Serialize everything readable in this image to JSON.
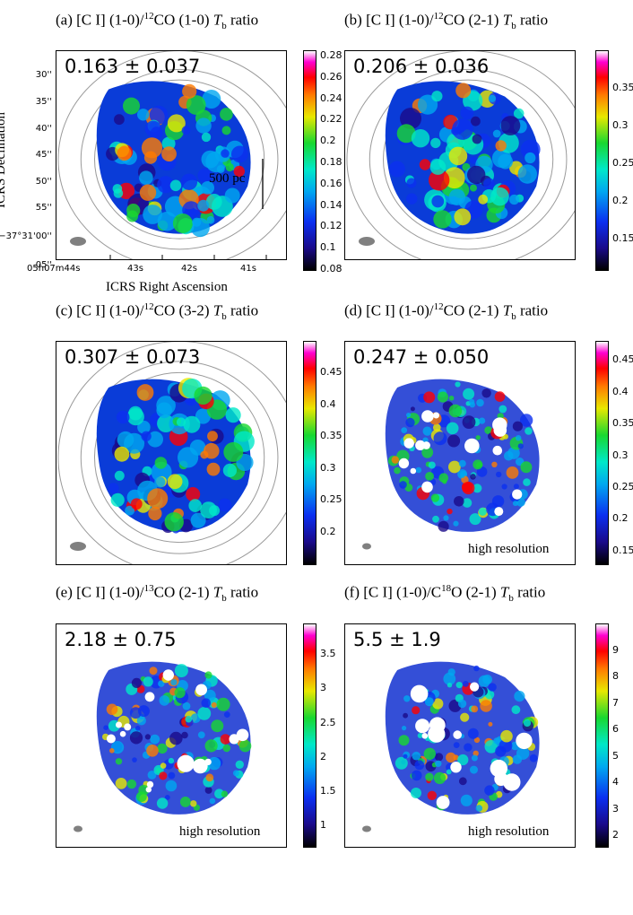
{
  "colors": {
    "frame": "#000000",
    "contour": "#9a9a9a",
    "beam": "#808080"
  },
  "axes": {
    "ylabel": "ICRS Declination",
    "xlabel": "ICRS Right Ascension",
    "dec_ticks": [
      "30''",
      "35''",
      "40''",
      "45''",
      "50''",
      "55''",
      "−37°31'00''",
      "05''"
    ],
    "ra_ticks": [
      "05h07m44s",
      "43s",
      "42s",
      "41s"
    ]
  },
  "scalebar": {
    "label": "500 pc"
  },
  "chart_data": [
    {
      "type": "heatmap",
      "panel": "(a)",
      "title_prefix": "(a) [C I] (1-0)/",
      "title_iso": "12",
      "title_mol": "CO (1-0) ",
      "title_T": "T",
      "title_sub": "b",
      "title_suffix": " ratio",
      "stat": "0.163 ± 0.037",
      "note": "",
      "colorbar_ticks": [
        "0.28",
        "0.26",
        "0.24",
        "0.22",
        "0.2",
        "0.18",
        "0.16",
        "0.14",
        "0.12",
        "0.1",
        "0.08"
      ],
      "cmin": 0.08,
      "cmax": 0.285
    },
    {
      "type": "heatmap",
      "panel": "(b)",
      "title_prefix": "(b) [C I] (1-0)/",
      "title_iso": "12",
      "title_mol": "CO (2-1) ",
      "title_T": "T",
      "title_sub": "b",
      "title_suffix": " ratio",
      "stat": "0.206 ± 0.036",
      "note": "",
      "colorbar_ticks": [
        "0.35",
        "0.3",
        "0.25",
        "0.2",
        "0.15"
      ],
      "cmin": 0.11,
      "cmax": 0.4
    },
    {
      "type": "heatmap",
      "panel": "(c)",
      "title_prefix": "(c) [C I] (1-0)/",
      "title_iso": "12",
      "title_mol": "CO (3-2) ",
      "title_T": "T",
      "title_sub": "b",
      "title_suffix": " ratio",
      "stat": "0.307 ± 0.073",
      "note": "",
      "colorbar_ticks": [
        "0.45",
        "0.4",
        "0.35",
        "0.3",
        "0.25",
        "0.2"
      ],
      "cmin": 0.15,
      "cmax": 0.5
    },
    {
      "type": "heatmap",
      "panel": "(d)",
      "title_prefix": "(d) [C I] (1-0)/",
      "title_iso": "12",
      "title_mol": "CO (2-1) ",
      "title_T": "T",
      "title_sub": "b",
      "title_suffix": " ratio",
      "stat": "0.247 ± 0.050",
      "note": "high resolution",
      "colorbar_ticks": [
        "0.45",
        "0.4",
        "0.35",
        "0.3",
        "0.25",
        "0.2",
        "0.15"
      ],
      "cmin": 0.13,
      "cmax": 0.48
    },
    {
      "type": "heatmap",
      "panel": "(e)",
      "title_prefix": "(e) [C I] (1-0)/",
      "title_iso": "13",
      "title_mol": "CO (2-1) ",
      "title_T": "T",
      "title_sub": "b",
      "title_suffix": " ratio",
      "stat": "2.18 ± 0.75",
      "note": "high resolution",
      "colorbar_ticks": [
        "3.5",
        "3",
        "2.5",
        "2",
        "1.5",
        "1"
      ],
      "cmin": 0.7,
      "cmax": 3.95
    },
    {
      "type": "heatmap",
      "panel": "(f)",
      "title_prefix": "(f) [C I] (1-0)/C",
      "title_iso": "18",
      "title_mol": "O (2-1) ",
      "title_T": "T",
      "title_sub": "b",
      "title_suffix": " ratio",
      "stat": "5.5 ± 1.9",
      "note": "high resolution",
      "colorbar_ticks": [
        "9",
        "8",
        "7",
        "6",
        "5",
        "4",
        "3",
        "2"
      ],
      "cmin": 1.6,
      "cmax": 10
    }
  ]
}
